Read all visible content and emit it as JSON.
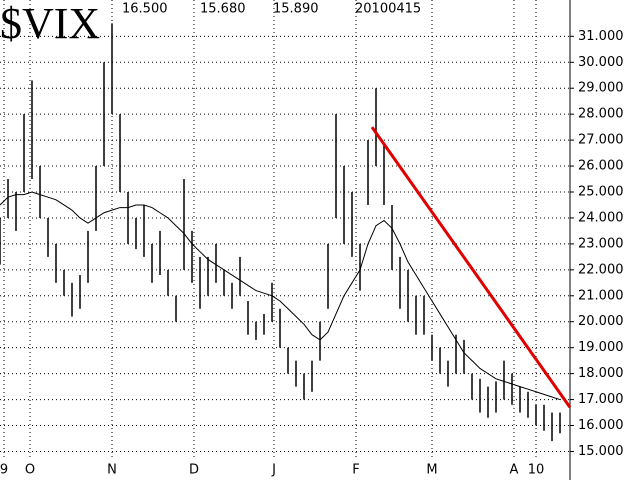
{
  "chart_data": {
    "type": "hilo",
    "title": "$VIX",
    "header_values": [
      "16.500",
      "15.680",
      "15.890",
      "20100415"
    ],
    "xlim": [
      0,
      142.5
    ],
    "ylim": [
      13.9,
      32.4
    ],
    "grid": true,
    "bar_color": "#000000",
    "ma_color": "#000000",
    "xticks": [
      {
        "value": 1,
        "label": "9"
      },
      {
        "value": 7.5,
        "label": "O"
      },
      {
        "value": 28,
        "label": "N"
      },
      {
        "value": 48.5,
        "label": "D"
      },
      {
        "value": 68.5,
        "label": "J"
      },
      {
        "value": 89,
        "label": "F"
      },
      {
        "value": 108,
        "label": "M"
      },
      {
        "value": 128.5,
        "label": "A"
      },
      {
        "value": 134,
        "label": "10"
      }
    ],
    "yticks": [
      {
        "value": 15,
        "label": "15.000"
      },
      {
        "value": 16,
        "label": "16.000"
      },
      {
        "value": 17,
        "label": "17.000"
      },
      {
        "value": 18,
        "label": "18.000"
      },
      {
        "value": 19,
        "label": "19.000"
      },
      {
        "value": 20,
        "label": "20.000"
      },
      {
        "value": 21,
        "label": "21.000"
      },
      {
        "value": 22,
        "label": "22.000"
      },
      {
        "value": 23,
        "label": "23.000"
      },
      {
        "value": 24,
        "label": "24.000"
      },
      {
        "value": 25,
        "label": "25.000"
      },
      {
        "value": 26,
        "label": "26.000"
      },
      {
        "value": 27,
        "label": "27.000"
      },
      {
        "value": 28,
        "label": "28.000"
      },
      {
        "value": 29,
        "label": "29.000"
      },
      {
        "value": 30,
        "label": "30.000"
      },
      {
        "value": 31,
        "label": "31.000"
      }
    ],
    "x": [
      0,
      2,
      4,
      6,
      8,
      10,
      12,
      14,
      16,
      18,
      20,
      22,
      24,
      26,
      28,
      30,
      32,
      34,
      36,
      38,
      40,
      42,
      44,
      46,
      48,
      50,
      52,
      54,
      56,
      58,
      60,
      62,
      64,
      66,
      68,
      70,
      72,
      74,
      76,
      78,
      80,
      82,
      84,
      86,
      88,
      90,
      92,
      94,
      96,
      98,
      100,
      102,
      104,
      106,
      108,
      110,
      112,
      114,
      116,
      118,
      120,
      122,
      124,
      126,
      128,
      130,
      132,
      134,
      136,
      138,
      140
    ],
    "high": [
      24,
      25.5,
      25,
      28,
      29.3,
      26,
      24,
      23,
      22,
      21.5,
      21.8,
      23.5,
      26,
      30,
      31.5,
      28,
      25,
      24,
      24.5,
      23,
      23.5,
      22,
      21,
      25.5,
      23.5,
      22.5,
      22.5,
      23,
      22,
      21.5,
      22.5,
      20.8,
      20,
      20.3,
      21.5,
      20.5,
      19,
      18.5,
      18,
      18.5,
      20,
      23,
      28,
      26,
      25,
      23,
      27,
      29,
      26.8,
      24.5,
      22.5,
      22,
      21,
      21,
      19.5,
      19,
      18.5,
      19.5,
      19.3,
      18,
      17.8,
      17.5,
      17.7,
      18.5,
      18,
      17.5,
      17.3,
      16.8,
      16.8,
      16.5,
      16.5
    ],
    "low": [
      22.2,
      24,
      23.5,
      25,
      25.5,
      24,
      22.5,
      21.5,
      21,
      20.2,
      20.5,
      21.5,
      23.5,
      26,
      28,
      25,
      23,
      22.8,
      22.5,
      21.5,
      21.8,
      21,
      20,
      22,
      21.5,
      20.5,
      21,
      21.5,
      21,
      20.5,
      21,
      19.5,
      19.3,
      19.5,
      20,
      19,
      18,
      17.5,
      17,
      17.3,
      18.5,
      20.5,
      24,
      23,
      22.5,
      21.2,
      24.5,
      26,
      24.5,
      22,
      20.5,
      20,
      19.5,
      19.5,
      18.5,
      18,
      17.5,
      18,
      18,
      17,
      16.5,
      16.3,
      16.5,
      17,
      16.8,
      16.5,
      16.3,
      16,
      15.8,
      15.4,
      15.7
    ],
    "moving_average": [
      24.5,
      24.8,
      24.9,
      24.9,
      25,
      24.9,
      24.8,
      24.7,
      24.5,
      24.3,
      24,
      23.8,
      24,
      24.2,
      24.3,
      24.4,
      24.4,
      24.5,
      24.5,
      24.4,
      24.2,
      24,
      23.7,
      23.4,
      23,
      22.7,
      22.4,
      22.2,
      22,
      21.8,
      21.6,
      21.4,
      21.2,
      21.1,
      21,
      20.8,
      20.5,
      20.2,
      19.9,
      19.5,
      19.3,
      19.6,
      20.3,
      21,
      21.5,
      22,
      23,
      23.7,
      23.9,
      23.6,
      23,
      22.3,
      21.8,
      21.3,
      20.8,
      20.3,
      19.8,
      19.3,
      18.8,
      18.5,
      18.2,
      18,
      17.8,
      17.7,
      17.6,
      17.5,
      17.4,
      17.3,
      17.2,
      17.1,
      17
    ],
    "trendline": {
      "x": [
        93,
        142.5
      ],
      "values": [
        27.5,
        16.7
      ],
      "color": "#e00000"
    }
  }
}
